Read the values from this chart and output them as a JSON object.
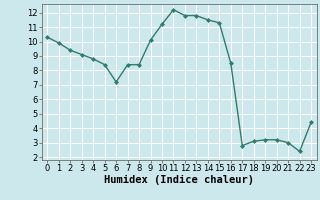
{
  "x": [
    0,
    1,
    2,
    3,
    4,
    5,
    6,
    7,
    8,
    9,
    10,
    11,
    12,
    13,
    14,
    15,
    16,
    17,
    18,
    19,
    20,
    21,
    22,
    23
  ],
  "y": [
    10.3,
    9.9,
    9.4,
    9.1,
    8.8,
    8.4,
    7.2,
    8.4,
    8.4,
    10.1,
    11.2,
    12.2,
    11.8,
    11.8,
    11.5,
    11.3,
    8.5,
    2.8,
    3.1,
    3.2,
    3.2,
    3.0,
    2.4,
    4.4
  ],
  "line_color": "#2e7d6e",
  "marker": "D",
  "marker_size": 2.0,
  "line_width": 1.0,
  "bg_color": "#cce8ec",
  "grid_color": "#ffffff",
  "xlabel": "Humidex (Indice chaleur)",
  "xlabel_fontsize": 7.5,
  "xlim": [
    -0.5,
    23.5
  ],
  "ylim": [
    1.8,
    12.6
  ],
  "yticks": [
    2,
    3,
    4,
    5,
    6,
    7,
    8,
    9,
    10,
    11,
    12
  ],
  "xticks": [
    0,
    1,
    2,
    3,
    4,
    5,
    6,
    7,
    8,
    9,
    10,
    11,
    12,
    13,
    14,
    15,
    16,
    17,
    18,
    19,
    20,
    21,
    22,
    23
  ],
  "tick_fontsize": 6,
  "axis_color": "#555555"
}
